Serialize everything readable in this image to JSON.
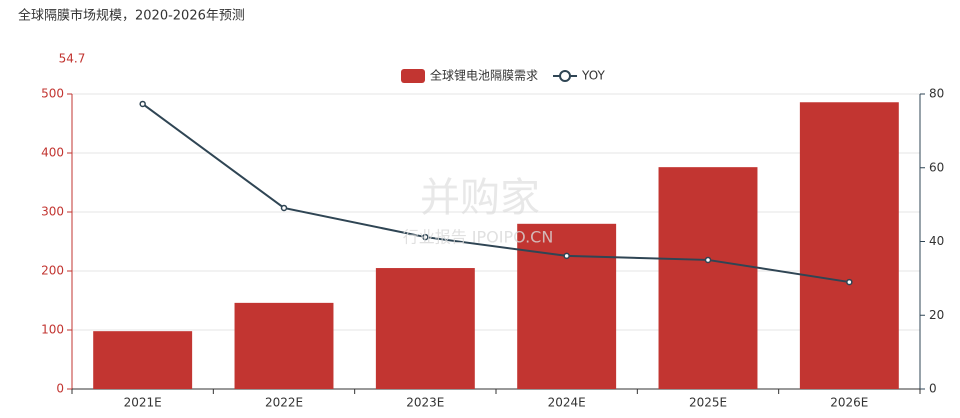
{
  "chart_data": {
    "type": "bar",
    "title": "全球隔膜市场规模，2020-2026年预测",
    "y_axis_label": "54.7",
    "categories": [
      "2021E",
      "2022E",
      "2023E",
      "2024E",
      "2025E",
      "2026E"
    ],
    "series": [
      {
        "name": "全球锂电池隔膜需求",
        "type": "bar",
        "color": "#c23531",
        "values": [
          98,
          146,
          205,
          280,
          376,
          486
        ]
      },
      {
        "name": "YOY",
        "type": "line",
        "axis": "y2",
        "color": "#2f4554",
        "values": [
          77.3,
          49.1,
          41.2,
          36.1,
          35,
          29
        ]
      }
    ],
    "ylim": [
      0,
      500
    ],
    "yticks": [
      0,
      100,
      200,
      300,
      400,
      500
    ],
    "y2lim": [
      0,
      80
    ],
    "y2ticks": [
      0,
      20,
      40,
      60,
      80
    ],
    "grid": true,
    "watermark": [
      "并购家",
      "行业报告 IPOIPO.CN"
    ]
  }
}
